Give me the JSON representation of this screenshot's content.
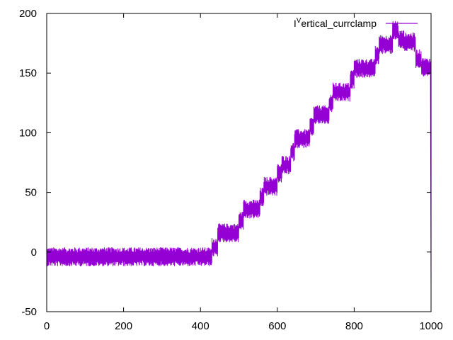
{
  "chart_data": {
    "type": "line",
    "title": "",
    "xlabel": "",
    "ylabel": "",
    "xlim": [
      0,
      1000
    ],
    "ylim": [
      -50,
      200
    ],
    "x_ticks": [
      0,
      200,
      400,
      600,
      800,
      1000
    ],
    "y_ticks": [
      -50,
      0,
      50,
      100,
      150,
      200
    ],
    "x_tick_labels": [
      "0",
      "200",
      "400",
      "600",
      "800",
      "1000"
    ],
    "y_tick_labels": [
      "-50",
      "0",
      "50",
      "100",
      "150",
      "200"
    ],
    "grid": false,
    "legend_position": "top-right",
    "series": [
      {
        "name_prefix": "I",
        "name_superscript": "V",
        "name_suffix": "ertical_currclamp",
        "color": "#9400d3",
        "noise_amplitude": 8,
        "steps": [
          {
            "x_start": 0,
            "x_end": 430,
            "y": -4
          },
          {
            "x_start": 430,
            "x_end": 445,
            "y": 4
          },
          {
            "x_start": 445,
            "x_end": 500,
            "y": 16
          },
          {
            "x_start": 500,
            "x_end": 512,
            "y": 26
          },
          {
            "x_start": 512,
            "x_end": 555,
            "y": 36
          },
          {
            "x_start": 555,
            "x_end": 565,
            "y": 46
          },
          {
            "x_start": 565,
            "x_end": 600,
            "y": 55
          },
          {
            "x_start": 600,
            "x_end": 612,
            "y": 66
          },
          {
            "x_start": 612,
            "x_end": 635,
            "y": 73
          },
          {
            "x_start": 635,
            "x_end": 645,
            "y": 84
          },
          {
            "x_start": 645,
            "x_end": 685,
            "y": 95
          },
          {
            "x_start": 685,
            "x_end": 695,
            "y": 105
          },
          {
            "x_start": 695,
            "x_end": 735,
            "y": 115
          },
          {
            "x_start": 735,
            "x_end": 745,
            "y": 125
          },
          {
            "x_start": 745,
            "x_end": 790,
            "y": 134
          },
          {
            "x_start": 790,
            "x_end": 800,
            "y": 145
          },
          {
            "x_start": 800,
            "x_end": 855,
            "y": 154
          },
          {
            "x_start": 855,
            "x_end": 865,
            "y": 165
          },
          {
            "x_start": 865,
            "x_end": 900,
            "y": 174
          },
          {
            "x_start": 900,
            "x_end": 915,
            "y": 186
          },
          {
            "x_start": 915,
            "x_end": 930,
            "y": 178
          },
          {
            "x_start": 930,
            "x_end": 960,
            "y": 176
          },
          {
            "x_start": 960,
            "x_end": 975,
            "y": 162
          },
          {
            "x_start": 975,
            "x_end": 998,
            "y": 155
          }
        ],
        "end_drop": {
          "x": 1000,
          "y": -30
        }
      }
    ]
  }
}
